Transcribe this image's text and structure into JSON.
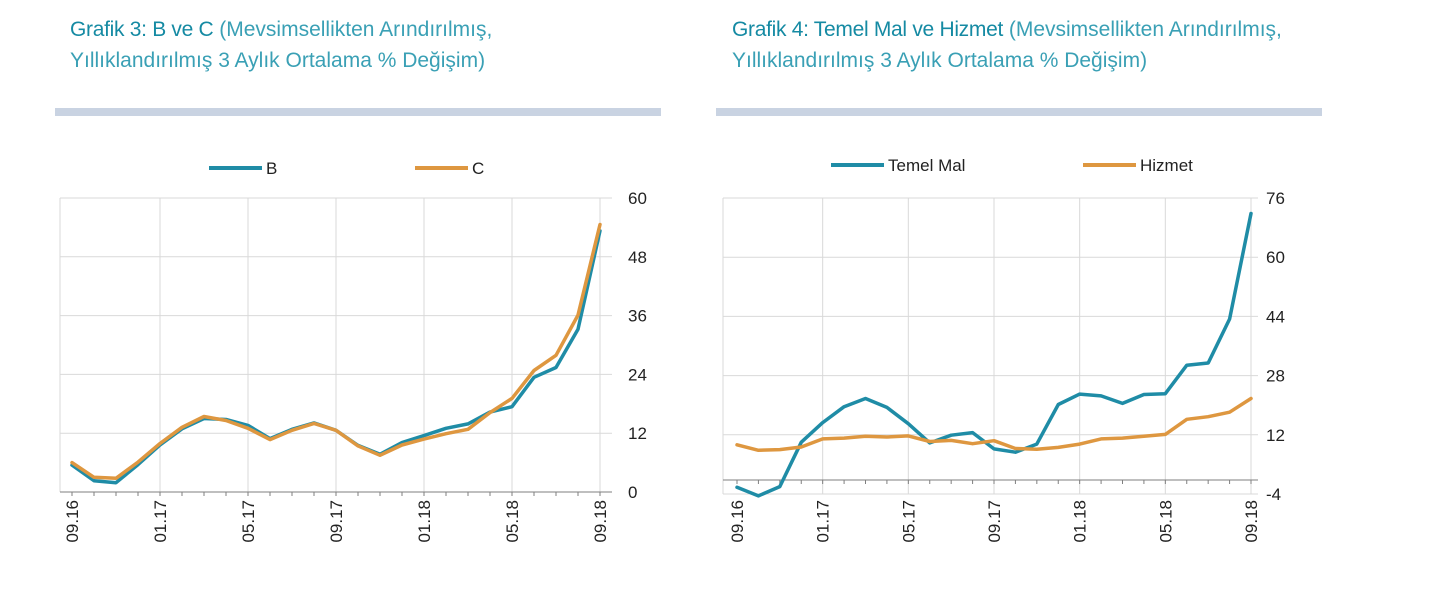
{
  "panels": [
    {
      "title_bold": "Grafik 3: B ve C",
      "title_rest": " (Mevsimsellikten Arındırılmış, Yıllıklandırılmış 3 Aylık Ortalama % Değişim)"
    },
    {
      "title_bold": "Grafik 4: Temel Mal ve Hizmet",
      "title_rest": " (Mevsimsellikten Arındırılmış, Yıllıklandırılmış 3 Aylık Ortalama % Değişim)"
    }
  ],
  "chart_data": [
    {
      "type": "line",
      "title": "Grafik 3: B ve C",
      "categories": [
        "09.16",
        "10.16",
        "11.16",
        "12.16",
        "01.17",
        "02.17",
        "03.17",
        "04.17",
        "05.17",
        "06.17",
        "07.17",
        "08.17",
        "09.17",
        "10.17",
        "11.17",
        "12.17",
        "01.18",
        "02.18",
        "03.18",
        "04.18",
        "05.18",
        "06.18",
        "07.18",
        "08.18",
        "09.18"
      ],
      "tick_labels": [
        "09.16",
        "01.17",
        "05.17",
        "09.17",
        "01.18",
        "05.18",
        "09.18"
      ],
      "ylim": [
        0,
        60
      ],
      "yticks": [
        0,
        12,
        24,
        36,
        48,
        60
      ],
      "series": [
        {
          "name": "B",
          "color": "#1f8ca6",
          "values": [
            5.5,
            2.3,
            1.9,
            5.6,
            9.6,
            12.9,
            15.0,
            14.8,
            13.6,
            10.9,
            12.8,
            14.1,
            12.6,
            9.5,
            7.7,
            10.1,
            11.5,
            13.0,
            13.9,
            16.3,
            17.4,
            23.4,
            25.4,
            33.2,
            53.3
          ]
        },
        {
          "name": "C",
          "color": "#de9740",
          "values": [
            6.0,
            3.0,
            2.8,
            6.1,
            9.9,
            13.2,
            15.4,
            14.6,
            13.0,
            10.7,
            12.6,
            14.0,
            12.6,
            9.4,
            7.5,
            9.6,
            10.8,
            11.9,
            12.8,
            16.2,
            19.1,
            24.8,
            27.9,
            36.1,
            54.6
          ]
        }
      ],
      "legend": "top"
    },
    {
      "type": "line",
      "title": "Grafik 4: Temel Mal ve Hizmet",
      "categories": [
        "09.16",
        "10.16",
        "11.16",
        "12.16",
        "01.17",
        "02.17",
        "03.17",
        "04.17",
        "05.17",
        "06.17",
        "07.17",
        "08.17",
        "09.17",
        "10.17",
        "11.17",
        "12.17",
        "01.18",
        "02.18",
        "03.18",
        "04.18",
        "05.18",
        "06.18",
        "07.18",
        "08.18",
        "09.18"
      ],
      "tick_labels": [
        "09.16",
        "01.17",
        "05.17",
        "09.17",
        "01.18",
        "05.18",
        "09.18"
      ],
      "ylim": [
        -4,
        76
      ],
      "yticks": [
        -4,
        12,
        28,
        44,
        60,
        76
      ],
      "series": [
        {
          "name": "Temel Mal",
          "color": "#1f8ca6",
          "values": [
            -2.2,
            -4.5,
            -2.0,
            10.0,
            15.3,
            19.6,
            21.8,
            19.4,
            15.0,
            9.8,
            11.9,
            12.6,
            8.2,
            7.3,
            9.5,
            20.2,
            23.0,
            22.5,
            20.5,
            22.9,
            23.1,
            30.8,
            31.4,
            43.3,
            71.8
          ]
        },
        {
          "name": "Hizmet",
          "color": "#de9740",
          "values": [
            9.3,
            7.8,
            8.0,
            8.7,
            10.9,
            11.1,
            11.6,
            11.4,
            11.7,
            10.2,
            10.5,
            9.6,
            10.4,
            8.3,
            8.1,
            8.6,
            9.5,
            10.9,
            11.1,
            11.6,
            12.1,
            16.2,
            16.9,
            18.1,
            21.8
          ]
        }
      ],
      "legend": "top"
    }
  ]
}
